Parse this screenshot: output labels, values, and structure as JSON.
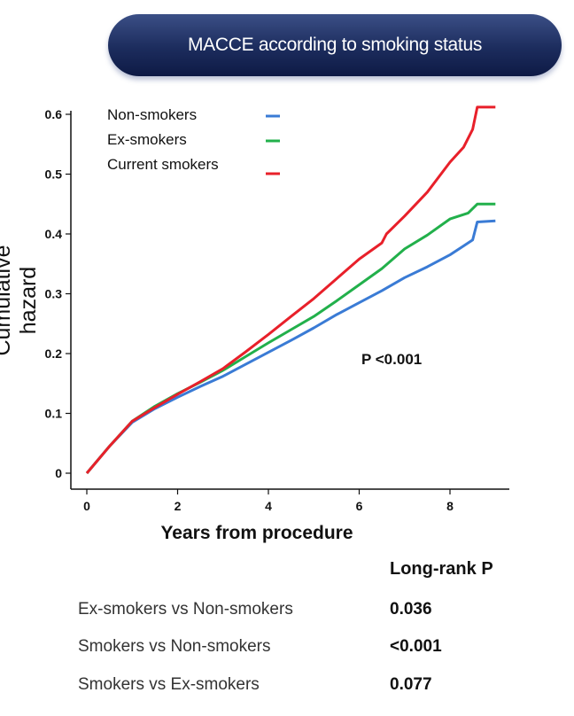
{
  "header": {
    "title": "MACCE according to smoking status"
  },
  "chart_data": {
    "type": "line",
    "title": "MACCE according to smoking status",
    "xlabel": "Years from procedure",
    "ylabel": "Cumulative hazard",
    "xlim": [
      0,
      9
    ],
    "ylim": [
      0,
      0.62
    ],
    "x_ticks": [
      0,
      2,
      4,
      6,
      8
    ],
    "x_tick_labels": [
      "0",
      "2",
      "4",
      "6",
      "8"
    ],
    "y_ticks": [
      0,
      0.1,
      0.2,
      0.3,
      0.4,
      0.5,
      0.6
    ],
    "y_tick_labels": [
      "0",
      "0.1",
      "0.2",
      "0.3",
      "0.4",
      "0.5",
      "0.6"
    ],
    "grid": false,
    "legend_position": "top-left",
    "annotation": "P <0.001",
    "series": [
      {
        "name": "Non-smokers",
        "color": "#3a7bd5",
        "x": [
          0,
          0.5,
          1,
          1.5,
          2,
          2.5,
          3,
          3.5,
          4,
          4.5,
          5,
          5.5,
          6,
          6.5,
          7,
          7.5,
          8,
          8.3,
          8.5,
          8.6,
          9
        ],
        "y": [
          0,
          0.045,
          0.085,
          0.108,
          0.127,
          0.145,
          0.162,
          0.182,
          0.202,
          0.222,
          0.243,
          0.265,
          0.285,
          0.305,
          0.327,
          0.345,
          0.365,
          0.38,
          0.39,
          0.42,
          0.422
        ]
      },
      {
        "name": "Ex-smokers",
        "color": "#22b04b",
        "x": [
          0,
          0.5,
          1,
          1.5,
          2,
          2.5,
          3,
          3.5,
          4,
          4.5,
          5,
          5.5,
          6,
          6.5,
          7,
          7.5,
          8,
          8.4,
          8.6,
          9
        ],
        "y": [
          0,
          0.045,
          0.087,
          0.112,
          0.133,
          0.152,
          0.172,
          0.195,
          0.218,
          0.24,
          0.262,
          0.288,
          0.315,
          0.342,
          0.375,
          0.398,
          0.425,
          0.435,
          0.45,
          0.45
        ]
      },
      {
        "name": "Current smokers",
        "color": "#e8202a",
        "x": [
          0,
          0.5,
          1,
          1.5,
          2,
          2.5,
          3,
          3.5,
          4,
          4.5,
          5,
          5.5,
          6,
          6.5,
          6.6,
          7,
          7.5,
          8,
          8.3,
          8.5,
          8.6,
          9
        ],
        "y": [
          0,
          0.045,
          0.087,
          0.11,
          0.132,
          0.153,
          0.175,
          0.203,
          0.232,
          0.262,
          0.292,
          0.325,
          0.358,
          0.385,
          0.4,
          0.43,
          0.47,
          0.52,
          0.545,
          0.575,
          0.612,
          0.612
        ]
      }
    ]
  },
  "stats": {
    "header": "Long-rank P",
    "rows": [
      {
        "label": "Ex-smokers vs Non-smokers",
        "value": "0.036"
      },
      {
        "label": "Smokers vs Non-smokers",
        "value": "<0.001"
      },
      {
        "label": "Smokers vs Ex-smokers",
        "value": "0.077"
      }
    ]
  }
}
